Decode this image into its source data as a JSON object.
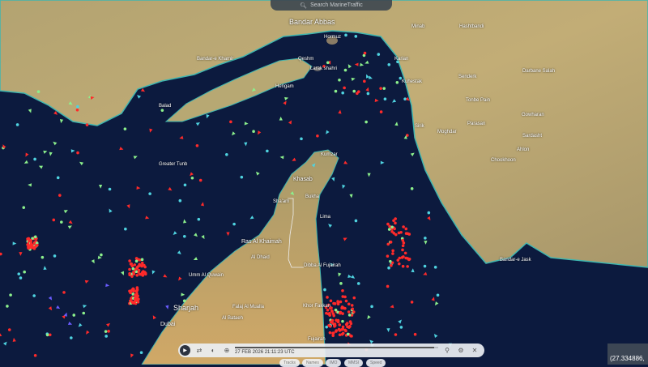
{
  "search": {
    "placeholder": "Search MarineTraffic",
    "icon": "search-icon"
  },
  "places": {
    "bandar_abbas": "Bandar Abbas",
    "hormuz": "Hormuz",
    "qeshm": "Qeshm",
    "larak": "Larak shahri",
    "bandar_khamir": "Bandar-e Khamir",
    "greater_tunb": "Greater Tunb",
    "khasab": "Khasab",
    "ras_al_khaimah": "Ras Al Khaimah",
    "umm_al_quwain": "Umm Al Quwain",
    "sharjah": "Sharjah",
    "dubai": "Dubai",
    "khor_fakkan": "Khor Fakkan",
    "fujairah": "Fujairah",
    "dibba": "Dibba Al Fujairah",
    "al_dhaid": "Al Dhaid",
    "falaj": "Falaj Al Mualla",
    "al_bataeh": "Al Bataeh",
    "bukha": "Bukha",
    "shaam": "Sha'am",
    "lima": "Lima",
    "kumzar": "Kumzar",
    "hashtbandi": "Hashtbandi",
    "minab": "Minab",
    "darbane_salah": "Darbane Salah",
    "senderk": "Senderk",
    "tonbe_pain": "Tonbe Pain",
    "gowharan": "Gowharan",
    "parasan": "Parasan",
    "sardasht": "Sardasht",
    "sirik": "Sirik",
    "moghdar": "Moghdar",
    "ahlon": "Ahlon",
    "chookhoon": "Chookhoon",
    "bandar_jask": "Bandar-e Jask",
    "kuhestak": "Kuhestak",
    "karian": "Karian",
    "balad": "Balad",
    "hengam": "Hengam"
  },
  "player": {
    "timestamp": "27 FEB 2026 21:11:23 UTC",
    "progress": 0.98,
    "chips": [
      "Tracks",
      "Names",
      "IMO",
      "MMSI",
      "Speed"
    ]
  },
  "coordinates": "(27.334886,",
  "colors": {
    "sea": "#0c1a3e",
    "land": "#b9a66e",
    "tanker": "#ff2a2a",
    "cargo": "#8cf08c",
    "passenger": "#4fd3e0",
    "other": "#6a5cff"
  }
}
